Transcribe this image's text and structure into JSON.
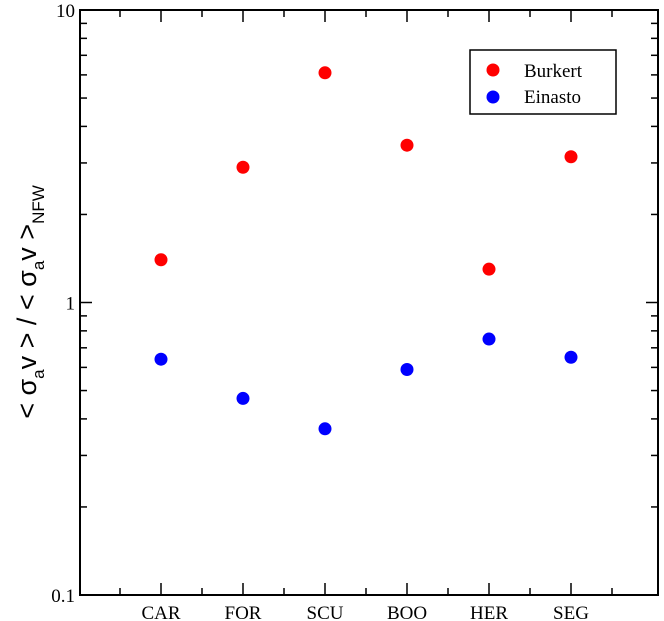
{
  "chart_data": {
    "type": "scatter",
    "categories": [
      "CAR",
      "FOR",
      "SCU",
      "BOO",
      "HER",
      "SEG"
    ],
    "series": [
      {
        "name": "Burkert",
        "color": "#ff0000",
        "values": [
          1.4,
          2.9,
          6.1,
          3.45,
          1.3,
          3.15
        ]
      },
      {
        "name": "Einasto",
        "color": "#0000ff",
        "values": [
          0.64,
          0.47,
          0.37,
          0.59,
          0.75,
          0.65
        ]
      }
    ],
    "ylabel": {
      "part1": "< σ",
      "sub1": "a",
      "part2": "v > / < σ",
      "sub2": "a",
      "part3": "v >",
      "sub3": "NFW"
    },
    "yscale": "log",
    "ylim": [
      0.1,
      10
    ],
    "yticks": [
      "0.1",
      "1",
      "10"
    ],
    "legend_position": "top-right",
    "grid": false
  }
}
